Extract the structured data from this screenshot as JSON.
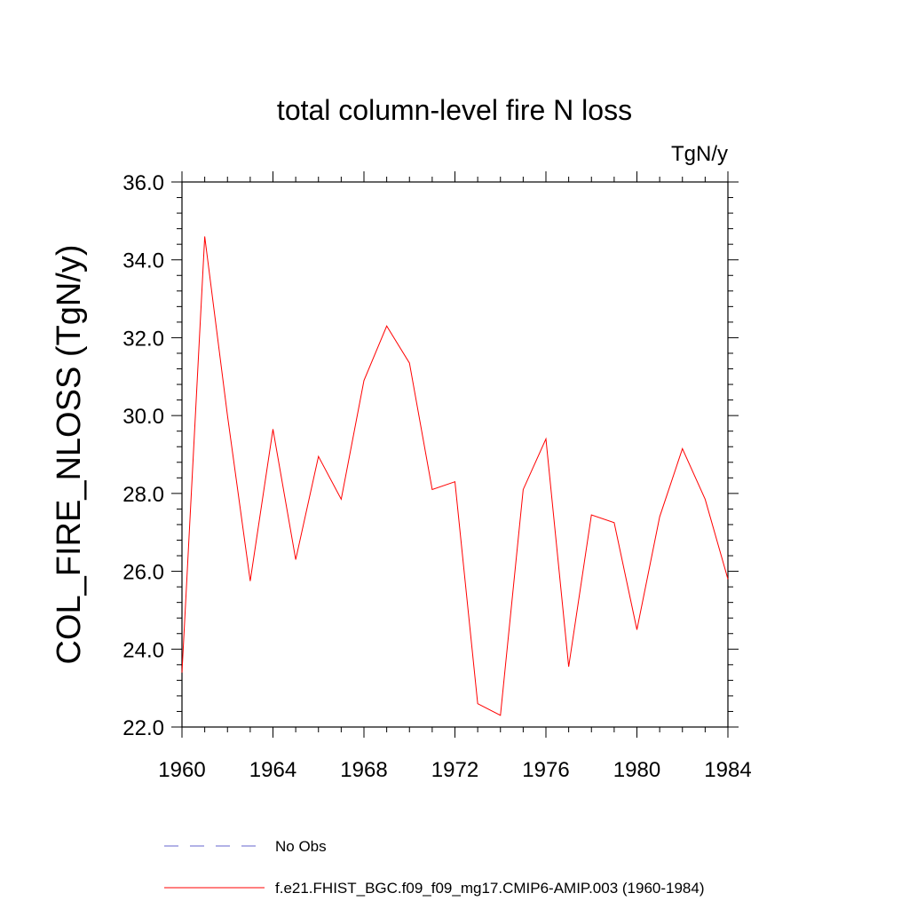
{
  "chart_data": {
    "type": "line",
    "title": "total column-level fire N loss",
    "units_label": "TgN/y",
    "ylabel": "COL_FIRE_NLOSS  (TgN/y)",
    "xlabel": "",
    "xlim": [
      1960,
      1984
    ],
    "ylim": [
      22.0,
      36.0
    ],
    "x_ticks": [
      "1960",
      "1964",
      "1968",
      "1972",
      "1976",
      "1980",
      "1984"
    ],
    "y_ticks": [
      "22.0",
      "24.0",
      "26.0",
      "28.0",
      "30.0",
      "32.0",
      "34.0",
      "36.0"
    ],
    "series": [
      {
        "name": "f.e21.FHIST_BGC.f09_f09_mg17.CMIP6-AMIP.003 (1960-1984)",
        "color": "#ff0000",
        "style": "solid",
        "x": [
          1960,
          1961,
          1962,
          1963,
          1964,
          1965,
          1966,
          1967,
          1968,
          1969,
          1970,
          1971,
          1972,
          1973,
          1974,
          1975,
          1976,
          1977,
          1978,
          1979,
          1980,
          1981,
          1982,
          1983,
          1984
        ],
        "values": [
          23.4,
          34.6,
          30.0,
          25.75,
          29.65,
          26.3,
          28.95,
          27.85,
          30.9,
          32.3,
          31.35,
          28.1,
          28.3,
          22.6,
          22.3,
          28.1,
          29.4,
          23.55,
          27.45,
          27.25,
          24.5,
          27.4,
          29.15,
          27.85,
          25.8
        ]
      }
    ],
    "legend": [
      {
        "label": "No Obs",
        "color": "#6666cc",
        "style": "dashed"
      },
      {
        "label": "f.e21.FHIST_BGC.f09_f09_mg17.CMIP6-AMIP.003 (1960-1984)",
        "color": "#ff0000",
        "style": "solid"
      }
    ]
  }
}
